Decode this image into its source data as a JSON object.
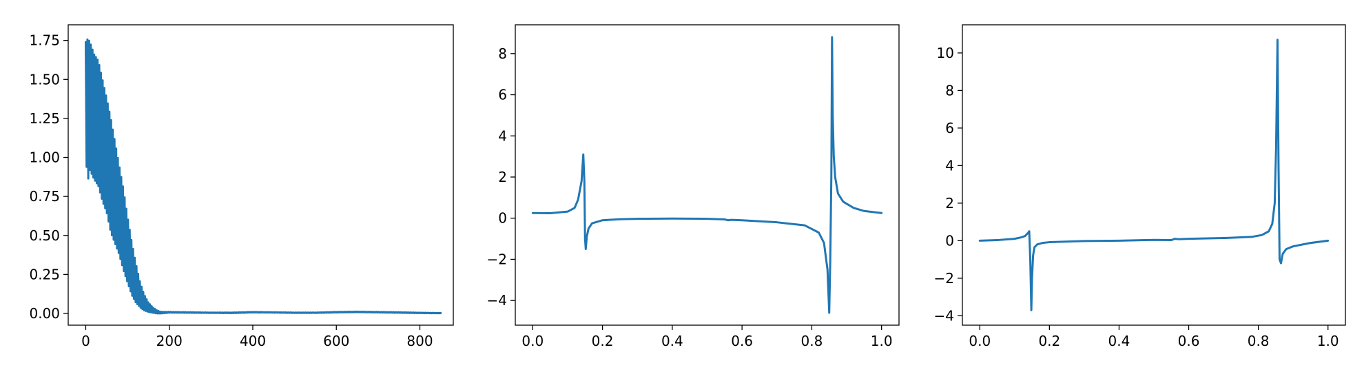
{
  "colors": {
    "series": "#1f77b4",
    "frame": "#000000",
    "background": "#ffffff"
  },
  "chart_data": [
    {
      "type": "line",
      "title": "",
      "xlabel": "",
      "ylabel": "",
      "grid": false,
      "xlim": [
        -42,
        880
      ],
      "ylim": [
        -0.075,
        1.85
      ],
      "xticks": [
        0,
        200,
        400,
        600,
        800
      ],
      "xtick_labels": [
        "0",
        "200",
        "400",
        "600",
        "800"
      ],
      "yticks": [
        0.0,
        0.25,
        0.5,
        0.75,
        1.0,
        1.25,
        1.5,
        1.75
      ],
      "ytick_labels": [
        "0.00",
        "0.25",
        "0.50",
        "0.75",
        "1.00",
        "1.25",
        "1.50",
        "1.75"
      ],
      "series": [
        {
          "style": "oscillating-decay",
          "note_points": "upper and lower envelope of a dense oscillation; oscillation collapses to a near-flat line after x≈180",
          "x": [
            0,
            5,
            10,
            20,
            30,
            40,
            50,
            60,
            70,
            80,
            90,
            100,
            110,
            120,
            130,
            140,
            150,
            160,
            170,
            180,
            200,
            250,
            300,
            350,
            400,
            450,
            500,
            550,
            600,
            650,
            700,
            750,
            800,
            850
          ],
          "upper": [
            1.74,
            1.76,
            1.74,
            1.66,
            1.62,
            1.5,
            1.38,
            1.25,
            1.1,
            0.95,
            0.8,
            0.62,
            0.46,
            0.32,
            0.2,
            0.12,
            0.07,
            0.04,
            0.02,
            0.01,
            0.01,
            0.008,
            0.006,
            0.006,
            0.01,
            0.008,
            0.006,
            0.006,
            0.01,
            0.012,
            0.01,
            0.008,
            0.005,
            0.003
          ],
          "lower": [
            1.0,
            0.85,
            0.92,
            0.86,
            0.82,
            0.72,
            0.65,
            0.52,
            0.45,
            0.38,
            0.28,
            0.2,
            0.12,
            0.07,
            0.04,
            0.02,
            0.01,
            0.005,
            0.0,
            0.0,
            0.005,
            0.004,
            0.003,
            0.002,
            0.006,
            0.005,
            0.003,
            0.003,
            0.006,
            0.008,
            0.006,
            0.004,
            0.002,
            0.001
          ]
        }
      ]
    },
    {
      "type": "line",
      "title": "",
      "xlabel": "",
      "ylabel": "",
      "grid": false,
      "xlim": [
        -0.05,
        1.05
      ],
      "ylim": [
        -5.2,
        9.4
      ],
      "xticks": [
        0.0,
        0.2,
        0.4,
        0.6,
        0.8,
        1.0
      ],
      "xtick_labels": [
        "0.0",
        "0.2",
        "0.4",
        "0.6",
        "0.8",
        "1.0"
      ],
      "yticks": [
        -4,
        -2,
        0,
        2,
        4,
        6,
        8
      ],
      "ytick_labels": [
        "−4",
        "−2",
        "0",
        "2",
        "4",
        "6",
        "8"
      ],
      "series": [
        {
          "x": [
            0.0,
            0.05,
            0.1,
            0.12,
            0.13,
            0.14,
            0.145,
            0.148,
            0.15,
            0.152,
            0.155,
            0.16,
            0.17,
            0.2,
            0.25,
            0.3,
            0.4,
            0.5,
            0.55,
            0.56,
            0.57,
            0.6,
            0.7,
            0.78,
            0.82,
            0.835,
            0.845,
            0.85,
            0.853,
            0.856,
            0.858,
            0.86,
            0.863,
            0.867,
            0.875,
            0.89,
            0.92,
            0.95,
            1.0
          ],
          "y": [
            0.25,
            0.24,
            0.32,
            0.5,
            0.9,
            1.8,
            3.1,
            1.8,
            -1.0,
            -1.5,
            -0.9,
            -0.5,
            -0.25,
            -0.1,
            -0.05,
            -0.03,
            -0.02,
            -0.03,
            -0.06,
            -0.1,
            -0.08,
            -0.1,
            -0.2,
            -0.35,
            -0.7,
            -1.2,
            -2.5,
            -4.6,
            -2.0,
            2.0,
            8.8,
            5.0,
            3.0,
            2.0,
            1.2,
            0.8,
            0.5,
            0.35,
            0.25
          ]
        }
      ]
    },
    {
      "type": "line",
      "title": "",
      "xlabel": "",
      "ylabel": "",
      "grid": false,
      "xlim": [
        -0.05,
        1.05
      ],
      "ylim": [
        -4.5,
        11.5
      ],
      "xticks": [
        0.0,
        0.2,
        0.4,
        0.6,
        0.8,
        1.0
      ],
      "xtick_labels": [
        "0.0",
        "0.2",
        "0.4",
        "0.6",
        "0.8",
        "1.0"
      ],
      "yticks": [
        -4,
        -2,
        0,
        2,
        4,
        6,
        8,
        10
      ],
      "ytick_labels": [
        "−4",
        "−2",
        "0",
        "2",
        "4",
        "6",
        "8",
        "10"
      ],
      "series": [
        {
          "x": [
            0.0,
            0.05,
            0.1,
            0.12,
            0.13,
            0.138,
            0.142,
            0.145,
            0.148,
            0.15,
            0.153,
            0.157,
            0.165,
            0.18,
            0.2,
            0.3,
            0.4,
            0.5,
            0.55,
            0.56,
            0.57,
            0.6,
            0.7,
            0.78,
            0.81,
            0.83,
            0.84,
            0.847,
            0.851,
            0.855,
            0.858,
            0.861,
            0.865,
            0.87,
            0.88,
            0.9,
            0.95,
            1.0
          ],
          "y": [
            0.0,
            0.03,
            0.1,
            0.18,
            0.25,
            0.4,
            0.5,
            -1.0,
            -3.7,
            -2.0,
            -0.8,
            -0.35,
            -0.2,
            -0.12,
            -0.08,
            -0.02,
            0.0,
            0.04,
            0.03,
            0.1,
            0.08,
            0.1,
            0.14,
            0.2,
            0.3,
            0.5,
            0.9,
            2.0,
            5.0,
            10.7,
            4.0,
            -1.0,
            -1.2,
            -0.7,
            -0.45,
            -0.3,
            -0.12,
            0.0
          ]
        }
      ]
    }
  ]
}
